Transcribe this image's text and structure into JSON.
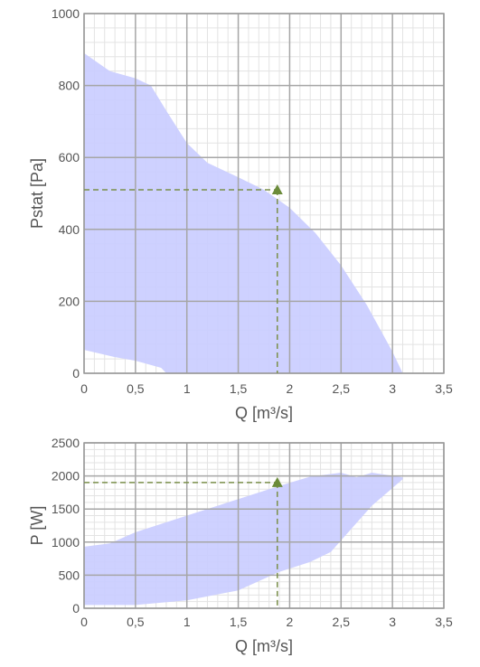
{
  "chart_data": [
    {
      "type": "area",
      "xlabel": "Q [m³/s]",
      "ylabel": "Pstat [Pa]",
      "xlim": [
        0,
        3.5
      ],
      "ylim": [
        0,
        1000
      ],
      "x_ticks": [
        "0",
        "0,5",
        "1",
        "1,5",
        "2",
        "2,5",
        "3",
        "3,5"
      ],
      "y_ticks": [
        "0",
        "200",
        "400",
        "600",
        "800",
        "1000"
      ],
      "grid": true,
      "minor_grid": true,
      "colors": {
        "area": "#c9ccff",
        "marker": "#6b8b3a",
        "guide": "#7a8f4a",
        "grid_major": "#a6a6a6",
        "grid_minor": "#e3e3e3",
        "frame": "#9a9a9a"
      },
      "envelope": {
        "upper": [
          [
            0,
            890
          ],
          [
            0.25,
            840
          ],
          [
            0.5,
            820
          ],
          [
            0.65,
            800
          ],
          [
            0.8,
            730
          ],
          [
            1.0,
            640
          ],
          [
            1.2,
            585
          ],
          [
            1.5,
            545
          ],
          [
            1.75,
            510
          ],
          [
            2.0,
            460
          ],
          [
            2.25,
            390
          ],
          [
            2.5,
            300
          ],
          [
            2.75,
            190
          ],
          [
            3.0,
            60
          ],
          [
            3.1,
            0
          ]
        ],
        "lower": [
          [
            0,
            65
          ],
          [
            0.3,
            45
          ],
          [
            0.5,
            35
          ],
          [
            0.75,
            15
          ],
          [
            0.8,
            0
          ]
        ]
      },
      "operating_point": {
        "x": 1.88,
        "y": 510
      }
    },
    {
      "type": "area",
      "xlabel": "Q [m³/s]",
      "ylabel": "P [W]",
      "xlim": [
        0,
        3.5
      ],
      "ylim": [
        0,
        2500
      ],
      "x_ticks": [
        "0",
        "0,5",
        "1",
        "1,5",
        "2",
        "2,5",
        "3",
        "3,5"
      ],
      "y_ticks": [
        "0",
        "500",
        "1000",
        "1500",
        "2000",
        "2500"
      ],
      "grid": true,
      "minor_grid": true,
      "colors": {
        "area": "#c9ccff",
        "marker": "#6b8b3a",
        "guide": "#7a8f4a",
        "grid_major": "#a6a6a6",
        "grid_minor": "#e3e3e3",
        "frame": "#9a9a9a"
      },
      "envelope": {
        "upper": [
          [
            0,
            930
          ],
          [
            0.25,
            980
          ],
          [
            0.5,
            1150
          ],
          [
            1.0,
            1400
          ],
          [
            1.5,
            1650
          ],
          [
            1.9,
            1850
          ],
          [
            2.2,
            1990
          ],
          [
            2.5,
            2050
          ],
          [
            2.65,
            1980
          ],
          [
            2.8,
            2050
          ],
          [
            3.1,
            1980
          ]
        ],
        "lower": [
          [
            0,
            50
          ],
          [
            0.5,
            50
          ],
          [
            1.0,
            120
          ],
          [
            1.5,
            270
          ],
          [
            1.9,
            550
          ],
          [
            2.2,
            700
          ],
          [
            2.4,
            850
          ],
          [
            2.6,
            1200
          ],
          [
            2.8,
            1550
          ],
          [
            3.1,
            1950
          ]
        ]
      },
      "operating_point": {
        "x": 1.88,
        "y": 1900
      }
    }
  ]
}
